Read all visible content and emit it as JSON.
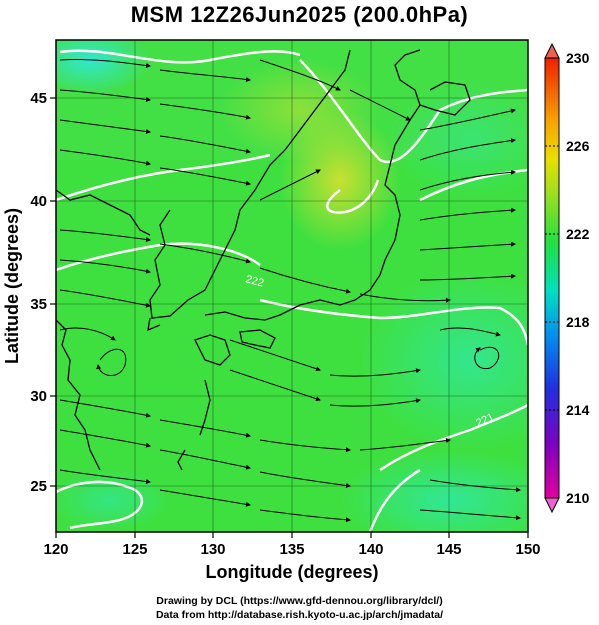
{
  "title": "MSM 12Z26Jun2025 (200.0hPa)",
  "xlabel": "Longitude (degrees)",
  "ylabel": "Latitude  (degrees)",
  "lon_range": [
    120,
    150
  ],
  "lat_range": [
    23,
    48
  ],
  "x_ticks": [
    "120",
    "125",
    "130",
    "135",
    "140",
    "145",
    "150"
  ],
  "y_ticks": [
    "25",
    "30",
    "35",
    "40",
    "45"
  ],
  "colorbar": {
    "min": 210,
    "max": 230,
    "labels": [
      "210",
      "214",
      "218",
      "222",
      "226",
      "230"
    ]
  },
  "contour_labels": [
    "222",
    "221"
  ],
  "field_description": "Geopotential-like temperature field with streamlines over Japan",
  "credits": [
    "Drawing by DCL (https://www.gfd-dennou.org/library/dcl/)",
    "Data from http://database.rish.kyoto-u.ac.jp/arch/jmadata/"
  ]
}
